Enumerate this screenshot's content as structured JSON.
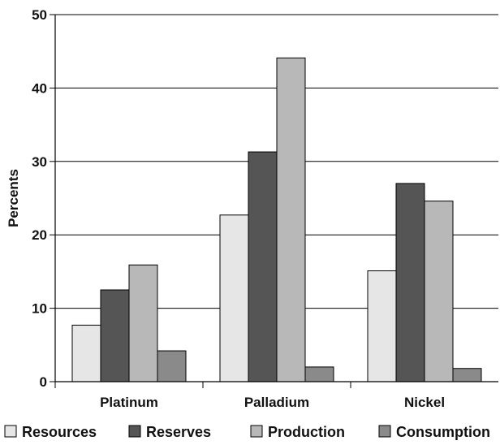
{
  "chart_data": {
    "type": "bar",
    "title": "",
    "xlabel": "",
    "ylabel": "Percents",
    "ylim": [
      0,
      50
    ],
    "yticks": [
      0,
      10,
      20,
      30,
      40,
      50
    ],
    "grid": true,
    "legend_position": "bottom",
    "categories": [
      "Platinum",
      "Palladium",
      "Nickel"
    ],
    "series": [
      {
        "name": "Resources",
        "color": "#e6e6e6",
        "values": [
          7.7,
          22.7,
          15.1
        ]
      },
      {
        "name": "Reserves",
        "color": "#555555",
        "values": [
          12.5,
          31.3,
          27.0
        ]
      },
      {
        "name": "Production",
        "color": "#b8b8b8",
        "values": [
          15.9,
          44.1,
          24.6
        ]
      },
      {
        "name": "Consumption",
        "color": "#8a8a8a",
        "values": [
          4.2,
          2.0,
          1.8
        ]
      }
    ]
  }
}
